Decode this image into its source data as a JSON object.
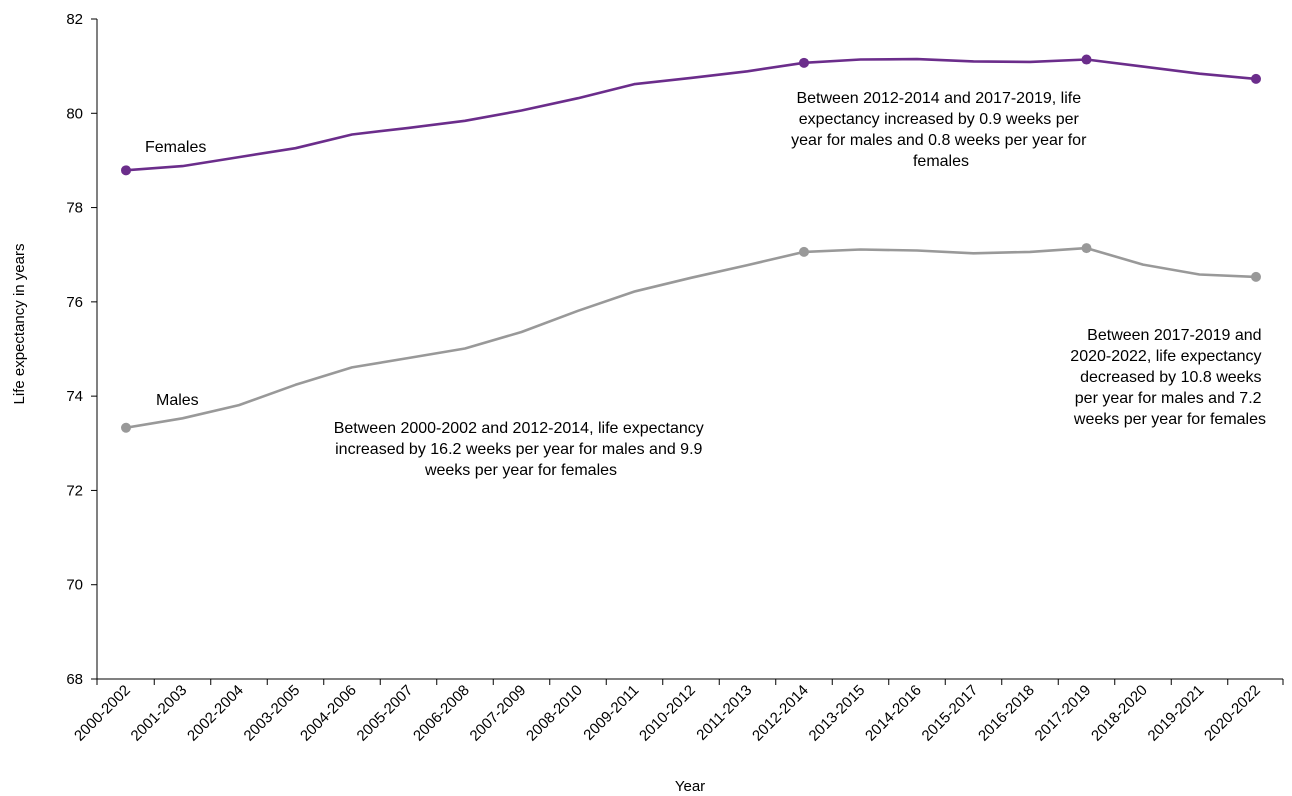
{
  "chart_data": {
    "type": "line",
    "title": "",
    "xlabel": "Year",
    "ylabel": "Life expectancy in years",
    "ylim": [
      68,
      82
    ],
    "yticks": [
      68,
      70,
      72,
      74,
      76,
      78,
      80,
      82
    ],
    "grid": false,
    "legend": "none",
    "categories": [
      "2000-2002",
      "2001-2003",
      "2002-2004",
      "2003-2005",
      "2004-2006",
      "2005-2007",
      "2006-2008",
      "2007-2009",
      "2008-2010",
      "2009-2011",
      "2010-2012",
      "2011-2013",
      "2012-2014",
      "2013-2015",
      "2014-2016",
      "2015-2017",
      "2016-2018",
      "2017-2019",
      "2018-2020",
      "2019-2021",
      "2020-2022"
    ],
    "series": [
      {
        "name": "Females",
        "color": "#6b2d8b",
        "values": [
          78.79,
          78.88,
          79.07,
          79.26,
          79.55,
          79.69,
          79.84,
          80.06,
          80.32,
          80.62,
          80.75,
          80.89,
          81.07,
          81.14,
          81.15,
          81.1,
          81.09,
          81.14,
          80.99,
          80.84,
          80.73
        ],
        "markers": [
          0,
          12,
          17,
          20
        ]
      },
      {
        "name": "Males",
        "color": "#999999",
        "values": [
          73.33,
          73.53,
          73.81,
          74.24,
          74.61,
          74.81,
          75.01,
          75.36,
          75.81,
          76.22,
          76.51,
          76.78,
          77.06,
          77.11,
          77.09,
          77.03,
          77.06,
          77.14,
          76.79,
          76.58,
          76.53
        ],
        "markers": [
          0,
          12,
          17,
          20
        ]
      }
    ],
    "annotations": [
      {
        "lines": [
          "Between 2000-2002 and 2012-2014, life expectancy",
          "increased by 16.2 weeks per year for males and 9.9",
          "weeks per year for females"
        ]
      },
      {
        "lines": [
          "Between 2012-2014 and 2017-2019, life",
          "expectancy increased by 0.9 weeks per",
          "year for males and 0.8 weeks per year for",
          "females"
        ]
      },
      {
        "lines": [
          "Between 2017-2019 and",
          "2020-2022, life expectancy",
          "decreased by 10.8 weeks",
          "per year for males and 7.2",
          "weeks per year for females"
        ]
      }
    ]
  }
}
